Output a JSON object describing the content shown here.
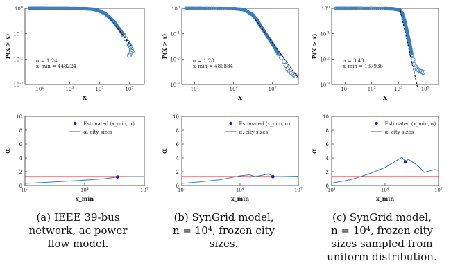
{
  "chart_data": [
    {
      "type": "scatter",
      "panel": "top-left",
      "ylabel": "P(X > x)",
      "xlabel": "x",
      "x_scale": "log",
      "y_scale": "log",
      "xlim": [
        1,
        100000000
      ],
      "ylim": [
        0.001,
        1
      ],
      "x_ticks": [
        "10^1",
        "10^3",
        "10^5",
        "10^7"
      ],
      "y_ticks": [
        "10^0",
        "10^-1",
        "10^-2",
        "10^-3"
      ],
      "annotation": [
        "α = 1.24",
        "x_min = 448224"
      ],
      "series": [
        {
          "points": [
            [
              2,
              1.0
            ],
            [
              10,
              0.995
            ],
            [
              100,
              0.99
            ],
            [
              1000,
              0.985
            ],
            [
              10000,
              0.97
            ],
            [
              30000,
              0.93
            ],
            [
              60000,
              0.86
            ],
            [
              120000,
              0.75
            ],
            [
              250000,
              0.6
            ],
            [
              500000,
              0.42
            ],
            [
              1000000,
              0.28
            ],
            [
              2000000,
              0.16
            ],
            [
              4000000,
              0.09
            ],
            [
              8000000,
              0.045
            ],
            [
              12000000,
              0.03
            ],
            [
              15000000,
              0.02
            ],
            [
              10000000,
              0.014
            ]
          ]
        }
      ],
      "fit_line": [
        [
          448224,
          0.45
        ],
        [
          16000000,
          0.028
        ]
      ]
    },
    {
      "type": "scatter",
      "panel": "top-middle",
      "ylabel": "P(X > x)",
      "xlabel": "x",
      "x_scale": "log",
      "y_scale": "log",
      "xlim": [
        1,
        1000000000
      ],
      "ylim": [
        0.001,
        1
      ],
      "x_ticks": [
        "10^1",
        "10^4",
        "10^7"
      ],
      "y_ticks": [
        "10^0",
        "10^-1",
        "10^-2",
        "10^-3"
      ],
      "annotation": [
        "α = 1.28",
        "x_min = 486884"
      ],
      "series": [
        {
          "points": [
            [
              2,
              1.0
            ],
            [
              100,
              0.99
            ],
            [
              10000,
              0.97
            ],
            [
              50000,
              0.9
            ],
            [
              100000,
              0.78
            ],
            [
              300000,
              0.55
            ],
            [
              600000,
              0.36
            ],
            [
              1000000,
              0.24
            ],
            [
              3000000,
              0.1
            ],
            [
              10000000,
              0.04
            ],
            [
              30000000,
              0.016
            ],
            [
              80000000,
              0.008
            ],
            [
              150000000,
              0.004
            ],
            [
              300000000,
              0.0028
            ],
            [
              600000000,
              0.0022
            ]
          ]
        }
      ],
      "fit_line": [
        [
          486884,
          0.36
        ],
        [
          1000000000,
          0.0018
        ]
      ]
    },
    {
      "type": "scatter",
      "panel": "top-right",
      "ylabel": "P(X > x)",
      "xlabel": "x",
      "x_scale": "log",
      "y_scale": "log",
      "xlim": [
        1,
        100000000
      ],
      "ylim": [
        0.001,
        1
      ],
      "x_ticks": [
        "10^1",
        "10^3",
        "10^5",
        "10^7"
      ],
      "y_ticks": [
        "10^0",
        "10^-1",
        "10^-2",
        "10^-3"
      ],
      "annotation": [
        "α = 3.43",
        "x_min = 137936"
      ],
      "series": [
        {
          "points": [
            [
              2,
              1.0
            ],
            [
              100,
              0.995
            ],
            [
              10000,
              0.98
            ],
            [
              40000,
              0.95
            ],
            [
              80000,
              0.9
            ],
            [
              137936,
              0.82
            ],
            [
              200000,
              0.6
            ],
            [
              300000,
              0.3
            ],
            [
              450000,
              0.12
            ],
            [
              700000,
              0.04
            ],
            [
              1000000,
              0.015
            ],
            [
              1500000,
              0.006
            ],
            [
              2500000,
              0.004
            ],
            [
              4000000,
              0.0035
            ],
            [
              7000000,
              0.003
            ]
          ]
        }
      ],
      "fit_line": [
        [
          137936,
          0.8
        ],
        [
          3000000,
          0.0006
        ]
      ]
    },
    {
      "type": "line",
      "panel": "bottom-left",
      "ylabel": "α",
      "xlabel": "x_min",
      "x_scale": "log",
      "xlim": [
        10,
        10000000
      ],
      "ylim": [
        0,
        10
      ],
      "x_ticks": [
        "10^1",
        "10^4",
        "10^7"
      ],
      "y_ticks": [
        "0",
        "2",
        "4",
        "6",
        "8",
        "10"
      ],
      "legend": [
        "Estimated (x_min, α)",
        "α, city sizes"
      ],
      "legend_position": "top-right",
      "reference_alpha": 1.3,
      "curve": [
        [
          10,
          0.3
        ],
        [
          100,
          0.45
        ],
        [
          1000,
          0.6
        ],
        [
          10000,
          0.78
        ],
        [
          100000,
          0.98
        ],
        [
          448224,
          1.24
        ],
        [
          2000000,
          1.28
        ],
        [
          10000000,
          1.3
        ]
      ],
      "estimated_point": [
        448224,
        1.24
      ]
    },
    {
      "type": "line",
      "panel": "bottom-middle",
      "ylabel": "α",
      "xlabel": "x_min",
      "x_scale": "log",
      "xlim": [
        10,
        10000000
      ],
      "ylim": [
        0,
        10
      ],
      "x_ticks": [
        "10^1",
        "10^4",
        "10^7"
      ],
      "y_ticks": [
        "0",
        "2",
        "4",
        "6",
        "8",
        "10"
      ],
      "legend": [
        "Estimated (x_min, α)",
        "α, city sizes"
      ],
      "legend_position": "top-right",
      "reference_alpha": 1.3,
      "curve": [
        [
          10,
          0.3
        ],
        [
          100,
          0.55
        ],
        [
          1000,
          0.85
        ],
        [
          10000,
          1.4
        ],
        [
          30000,
          1.55
        ],
        [
          60000,
          1.3
        ],
        [
          150000,
          1.5
        ],
        [
          300000,
          1.68
        ],
        [
          486884,
          1.28
        ],
        [
          1500000,
          1.3
        ],
        [
          10000000,
          1.35
        ]
      ],
      "estimated_point": [
        486884,
        1.28
      ]
    },
    {
      "type": "line",
      "panel": "bottom-right",
      "ylabel": "α",
      "xlabel": "x_min",
      "x_scale": "log",
      "xlim": [
        10,
        10000000
      ],
      "ylim": [
        0,
        10
      ],
      "x_ticks": [
        "10^1",
        "10^4",
        "10^7"
      ],
      "y_ticks": [
        "0",
        "2",
        "4",
        "6",
        "8",
        "10"
      ],
      "legend": [
        "Estimated (x_min, α)",
        "α, city sizes"
      ],
      "legend_position": "top-right",
      "reference_alpha": 1.3,
      "curve": [
        [
          10,
          0.35
        ],
        [
          100,
          0.8
        ],
        [
          1000,
          1.6
        ],
        [
          10000,
          2.6
        ],
        [
          50000,
          3.7
        ],
        [
          90000,
          4.1
        ],
        [
          137936,
          3.43
        ],
        [
          200000,
          3.8
        ],
        [
          400000,
          3.3
        ],
        [
          900000,
          2.6
        ],
        [
          1500000,
          1.9
        ],
        [
          3000000,
          2.1
        ],
        [
          6000000,
          2.3
        ],
        [
          10000000,
          2.2
        ]
      ],
      "estimated_point": [
        137936,
        3.43
      ]
    }
  ],
  "colors": {
    "series": "#3a7fc1",
    "fit": "#000000",
    "reference": "#e0202a",
    "estimated": "#1f1fb8",
    "axis": "#333333"
  },
  "captions": [
    {
      "label": "(a)",
      "line1": "IEEE 39-bus",
      "line2": "network, ac power",
      "line3": "flow model.",
      "line4": ""
    },
    {
      "label": "(b)",
      "line1": "SynGrid model,",
      "line2": "n = 10⁴, frozen city",
      "line3": "sizes.",
      "line4": ""
    },
    {
      "label": "(c)",
      "line1": "SynGrid model,",
      "line2": "n = 10⁴, frozen city",
      "line3": "sizes sampled from",
      "line4": "uniform distribution."
    }
  ]
}
